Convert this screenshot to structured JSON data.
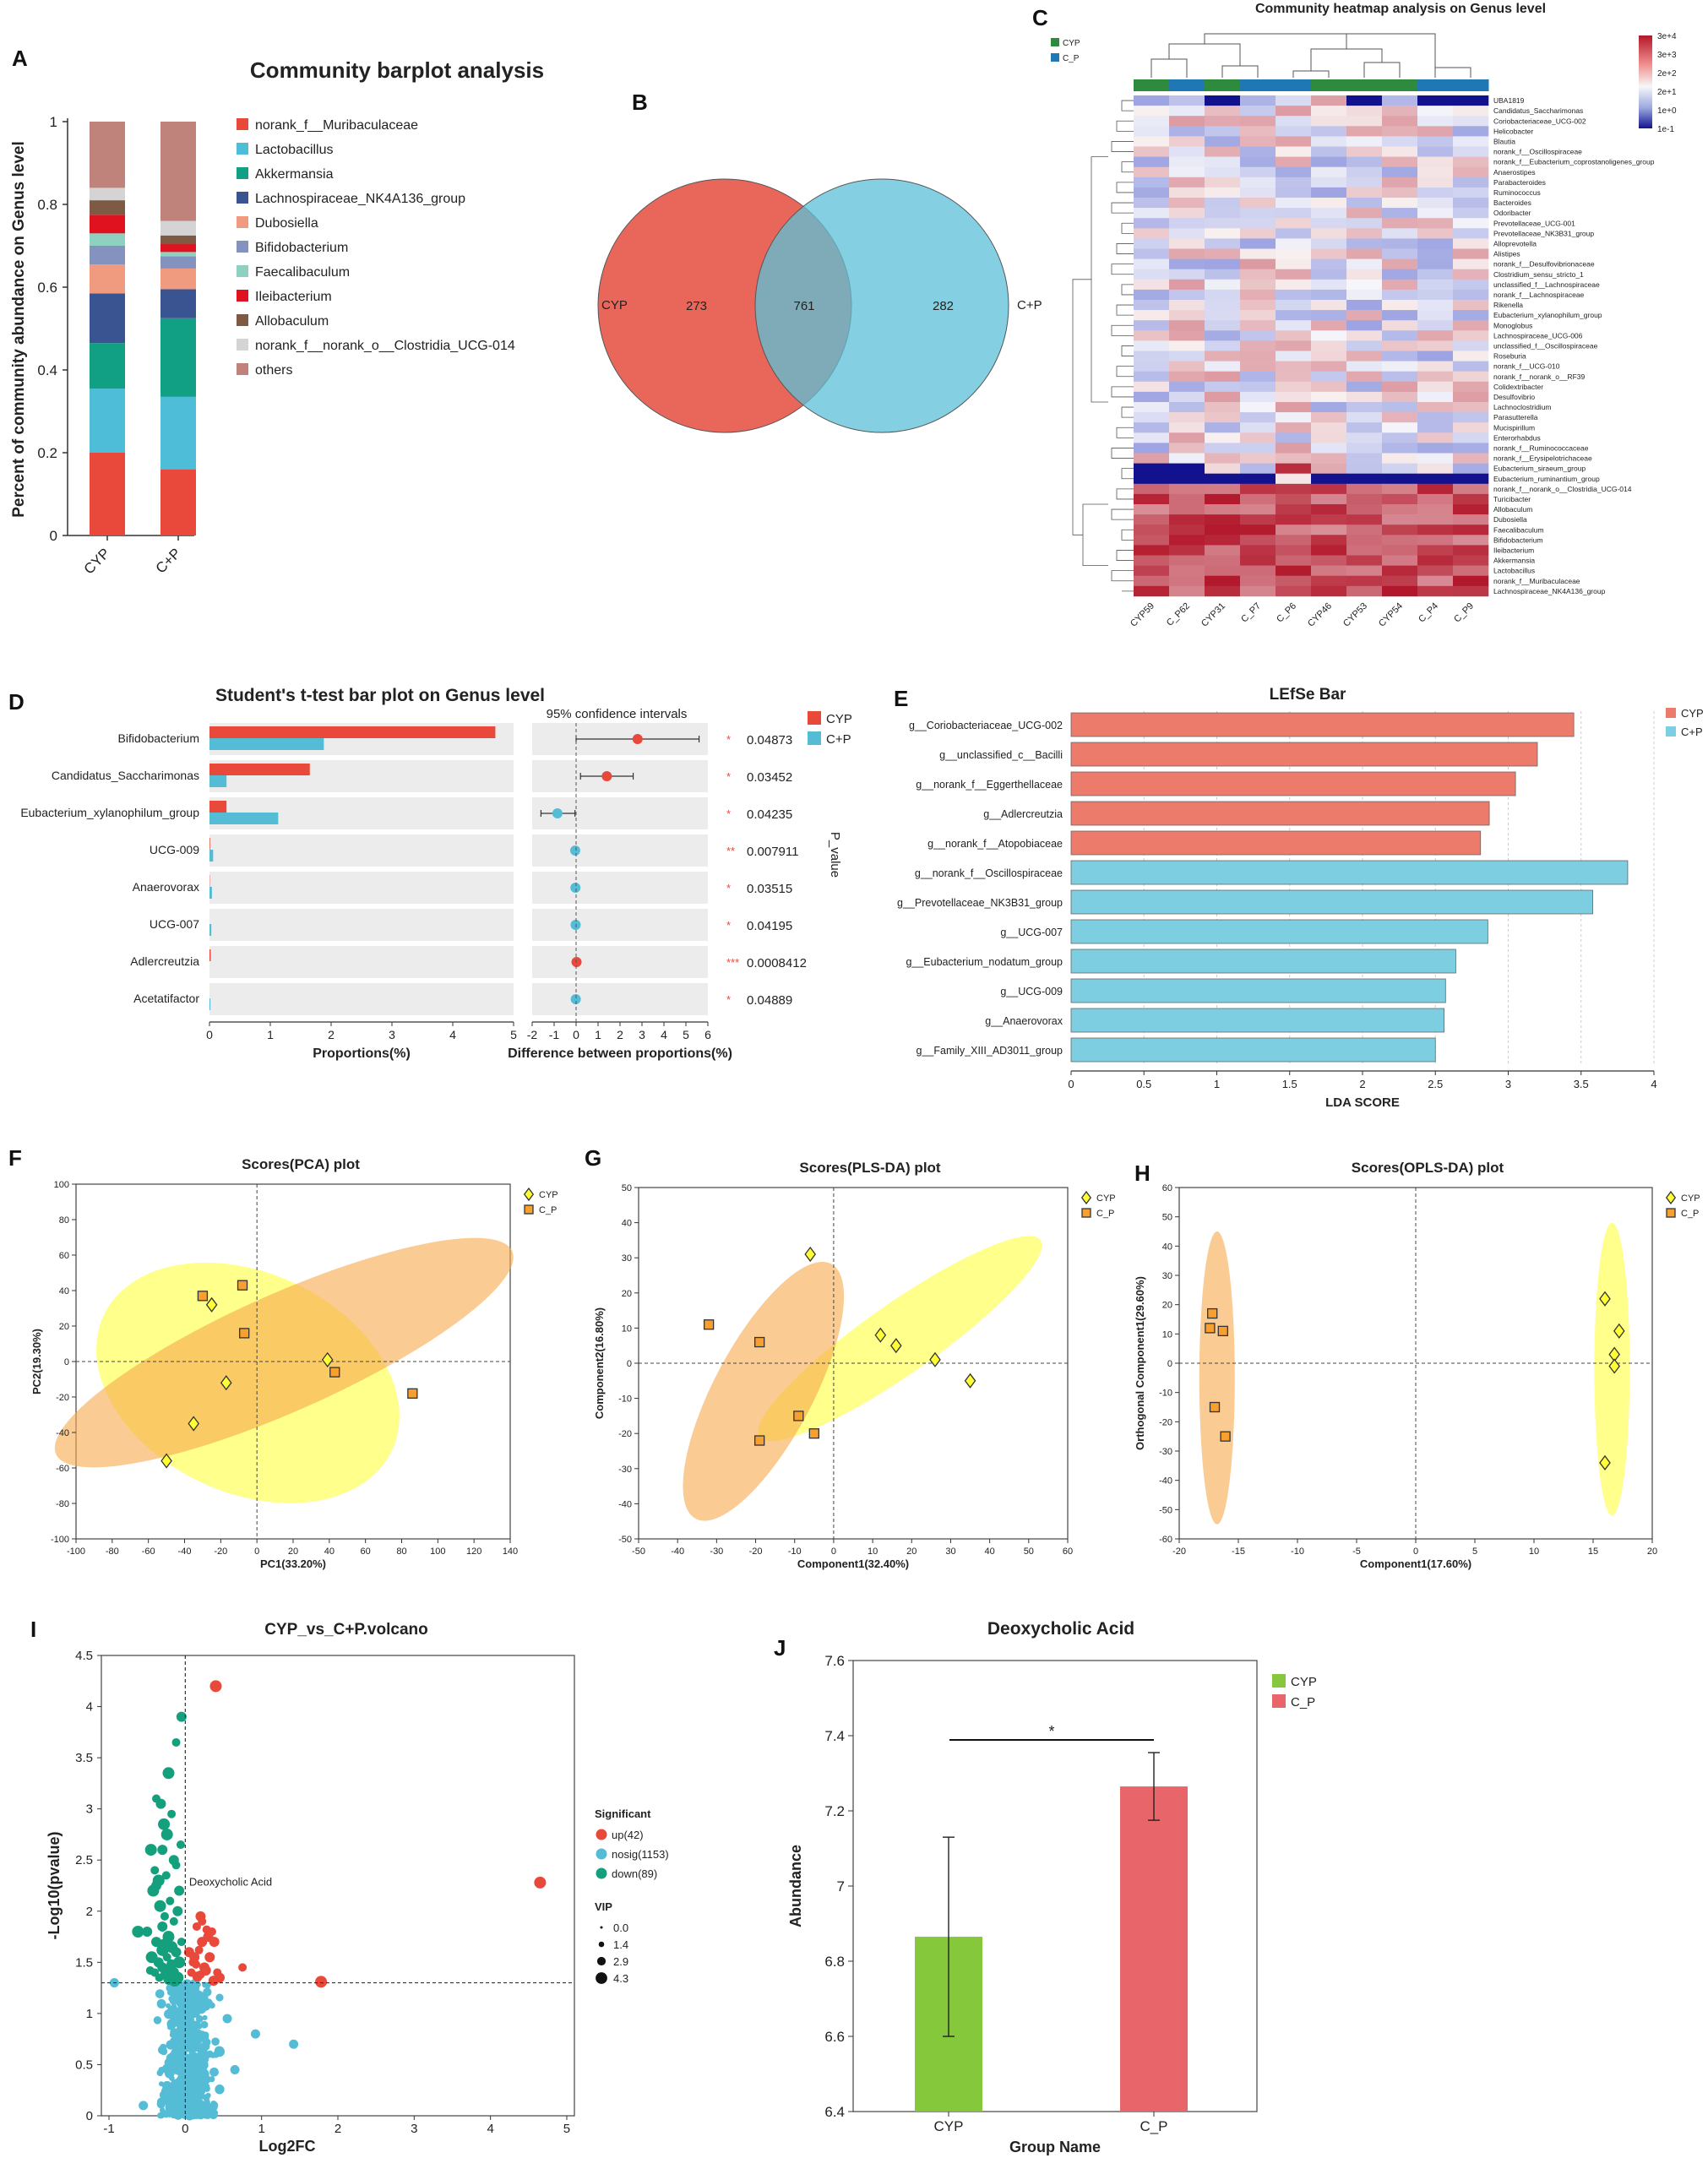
{
  "colors": {
    "cyp_red": "#e8493a",
    "cp_blue": "#55bcd6",
    "pca_yellow": "#ffff66",
    "pca_orange": "#f7a94b",
    "lefse_red": "#ec7b6c",
    "lefse_blue": "#7ccee0",
    "venn_red": "#e9675a",
    "venn_blue": "#5bc0d8",
    "green": "#86c83c",
    "bar_red": "#e8666a",
    "heat_high": "#b2182b",
    "heat_low": "#12128f"
  },
  "panels": {
    "A": "A",
    "B": "B",
    "C": "C",
    "D": "D",
    "E": "E",
    "F": "F",
    "G": "G",
    "H": "H",
    "I": "I",
    "J": "J"
  },
  "chart_data": [
    {
      "id": "A",
      "type": "bar",
      "stacked": true,
      "title": "Community barplot analysis",
      "xlabel": "",
      "ylabel": "Percent of community abundance on Genus level",
      "ylim": [
        0,
        1
      ],
      "yticks": [
        "0",
        "0.2",
        "0.4",
        "0.6",
        "0.8",
        "1"
      ],
      "categories": [
        "CYP",
        "C+P"
      ],
      "legend_position": "right",
      "series": [
        {
          "name": "norank_f__Muribaculaceae",
          "color": "#e8493a",
          "values": [
            0.2,
            0.16
          ]
        },
        {
          "name": "Lactobacillus",
          "color": "#4dbdd8",
          "values": [
            0.155,
            0.175
          ]
        },
        {
          "name": "Akkermansia",
          "color": "#12a084",
          "values": [
            0.11,
            0.19
          ]
        },
        {
          "name": "Lachnospiraceae_NK4A136_group",
          "color": "#3a5391",
          "values": [
            0.12,
            0.07
          ]
        },
        {
          "name": "Dubosiella",
          "color": "#f09a80",
          "values": [
            0.07,
            0.05
          ]
        },
        {
          "name": "Bifidobacterium",
          "color": "#8493bd",
          "values": [
            0.045,
            0.03
          ]
        },
        {
          "name": "Faecalibaculum",
          "color": "#8fd1c0",
          "values": [
            0.03,
            0.01
          ]
        },
        {
          "name": "Ileibacterium",
          "color": "#e0121f",
          "values": [
            0.045,
            0.02
          ]
        },
        {
          "name": "Allobaculum",
          "color": "#7e5a44",
          "values": [
            0.035,
            0.02
          ]
        },
        {
          "name": "norank_f__norank_o__Clostridia_UCG-014",
          "color": "#d4d4d4",
          "values": [
            0.03,
            0.035
          ]
        },
        {
          "name": "others",
          "color": "#c0837c",
          "values": [
            0.16,
            0.24
          ]
        }
      ]
    },
    {
      "id": "B",
      "type": "venn",
      "sets": [
        "CYP",
        "C+P"
      ],
      "values": {
        "only_left": 273,
        "both": 761,
        "only_right": 282
      }
    },
    {
      "id": "C",
      "type": "heatmap",
      "title": "Community heatmap analysis on Genus level",
      "legend_entries": [
        "CYP",
        "C_P"
      ],
      "colorbar_ticks": [
        "3e+4",
        "3e+3",
        "2e+2",
        "2e+1",
        "1e+0",
        "1e-1"
      ],
      "columns": [
        "CYP59",
        "C_P62",
        "CYP31",
        "C_P7",
        "C_P6",
        "CYP46",
        "CYP53",
        "CYP54",
        "C_P4",
        "C_P9"
      ],
      "column_groups": [
        "CYP",
        "C_P",
        "CYP",
        "C_P",
        "C_P",
        "CYP",
        "CYP",
        "CYP",
        "C_P",
        "C_P"
      ],
      "rows": [
        "UBA1819",
        "Candidatus_Saccharimonas",
        "Coriobacteriaceae_UCG-002",
        "Helicobacter",
        "Blautia",
        "norank_f__Oscillospiraceae",
        "norank_f__Eubacterium_coprostanoligenes_group",
        "Anaerostipes",
        "Parabacteroides",
        "Ruminococcus",
        "Bacteroides",
        "Odoribacter",
        "Prevotellaceae_UCG-001",
        "Prevotellaceae_NK3B31_group",
        "Alloprevotella",
        "Alistipes",
        "norank_f__Desulfovibrionaceae",
        "Clostridium_sensu_stricto_1",
        "unclassified_f__Lachnospiraceae",
        "norank_f__Lachnospiraceae",
        "Rikenella",
        "Eubacterium_xylanophilum_group",
        "Monoglobus",
        "Lachnospiraceae_UCG-006",
        "unclassified_f__Oscillospiraceae",
        "Roseburia",
        "norank_f__UCG-010",
        "norank_f__norank_o__RF39",
        "Colidextribacter",
        "Desulfovibrio",
        "Lachnoclostridium",
        "Parasutterella",
        "Mucispirillum",
        "Enterorhabdus",
        "norank_f__Ruminococcaceae",
        "norank_f__Erysipelotrichaceae",
        "Eubacterium_siraeum_group",
        "Eubacterium_ruminantium_group",
        "norank_f__norank_o__Clostridia_UCG-014",
        "Turicibacter",
        "Allobaculum",
        "Dubosiella",
        "Faecalibaculum",
        "Bifidobacterium",
        "Ileibacterium",
        "Akkermansia",
        "Lactobacillus",
        "norank_f__Muribaculaceae",
        "Lachnospiraceae_NK4A136_group"
      ]
    },
    {
      "id": "D",
      "type": "bar",
      "orientation": "horizontal",
      "title": "Student's t-test bar plot on Genus level",
      "xlabel": "Proportions(%)",
      "ci_label": "95% confidence intervals",
      "ci_xlabel": "Difference between proportions(%)",
      "pvalue_label": "P_value",
      "xlim": [
        0,
        5
      ],
      "ci_xlim": [
        -2,
        6
      ],
      "xticks": [
        "0",
        "1",
        "2",
        "3",
        "4",
        "5"
      ],
      "ci_xticks": [
        "-2",
        "-1",
        "0",
        "1",
        "2",
        "3",
        "4",
        "5",
        "6"
      ],
      "categories": [
        "Bifidobacterium",
        "Candidatus_Saccharimonas",
        "Eubacterium_xylanophilum_group",
        "UCG-009",
        "Anaerovorax",
        "UCG-007",
        "Adlercreutzia",
        "Acetatifactor"
      ],
      "series": [
        {
          "name": "CYP",
          "values": [
            4.7,
            1.65,
            0.28,
            0.01,
            0.005,
            0.0,
            0.02,
            0.0
          ]
        },
        {
          "name": "C+P",
          "values": [
            1.88,
            0.28,
            1.13,
            0.06,
            0.04,
            0.03,
            0.0,
            0.015
          ]
        }
      ],
      "difference": [
        2.8,
        1.4,
        -0.85,
        -0.04,
        -0.03,
        -0.02,
        0.02,
        -0.015
      ],
      "ci_low": [
        0.0,
        0.2,
        -1.6,
        -0.07,
        -0.05,
        -0.04,
        0.01,
        -0.03
      ],
      "ci_high": [
        5.6,
        2.6,
        -0.05,
        -0.01,
        0.0,
        0.0,
        0.04,
        0.0
      ],
      "stars": [
        "*",
        "*",
        "*",
        "**",
        "*",
        "*",
        "***",
        "*"
      ],
      "pvalues": [
        "0.04873",
        "0.03452",
        "0.04235",
        "0.007911",
        "0.03515",
        "0.04195",
        "0.0008412",
        "0.04889"
      ]
    },
    {
      "id": "E",
      "type": "bar",
      "orientation": "horizontal",
      "title": "LEfSe Bar",
      "xlabel": "LDA SCORE",
      "xlim": [
        0,
        4
      ],
      "xticks": [
        "0",
        "0.5",
        "1",
        "1.5",
        "2",
        "2.5",
        "3",
        "3.5",
        "4"
      ],
      "legend_entries": [
        "CYP",
        "C+P"
      ],
      "categories": [
        "g__Coriobacteriaceae_UCG-002",
        "g__unclassified_c__Bacilli",
        "g__norank_f__Eggerthellaceae",
        "g__Adlercreutzia",
        "g__norank_f__Atopobiaceae",
        "g__norank_f__Oscillospiraceae",
        "g__Prevotellaceae_NK3B31_group",
        "g__UCG-007",
        "g__Eubacterium_nodatum_group",
        "g__UCG-009",
        "g__Anaerovorax",
        "g__Family_XIII_AD3011_group"
      ],
      "values": [
        3.45,
        3.2,
        3.05,
        2.87,
        2.81,
        3.82,
        3.58,
        2.86,
        2.64,
        2.57,
        2.56,
        2.5
      ],
      "groups": [
        "CYP",
        "CYP",
        "CYP",
        "CYP",
        "CYP",
        "C+P",
        "C+P",
        "C+P",
        "C+P",
        "C+P",
        "C+P",
        "C+P"
      ]
    },
    {
      "id": "F",
      "type": "scatter",
      "title": "Scores(PCA) plot",
      "xlabel": "PC1(33.20%)",
      "ylabel": "PC2(19.30%)",
      "xlim": [
        -100,
        140
      ],
      "ylim": [
        -100,
        100
      ],
      "xticks": [
        "-100",
        "-80",
        "-60",
        "-40",
        "-20",
        "0",
        "20",
        "40",
        "60",
        "80",
        "100",
        "120",
        "140"
      ],
      "yticks": [
        "100",
        "80",
        "60",
        "40",
        "20",
        "0",
        "-20",
        "-40",
        "-60",
        "-80",
        "-100"
      ],
      "series": [
        {
          "name": "CYP",
          "x": [
            -25,
            -17,
            39,
            -35,
            -50
          ],
          "y": [
            32,
            -12,
            1,
            -35,
            -56
          ],
          "ellipse": {
            "cx": -5,
            "cy": -12,
            "rx": 88,
            "ry": 62,
            "angle": 25
          }
        },
        {
          "name": "C_P",
          "x": [
            -30,
            -8,
            -7,
            43,
            86
          ],
          "y": [
            37,
            43,
            16,
            -6,
            -18
          ],
          "ellipse": {
            "cx": 15,
            "cy": 5,
            "rx": 138,
            "ry": 33,
            "angle": -24
          }
        }
      ]
    },
    {
      "id": "G",
      "type": "scatter",
      "title": "Scores(PLS-DA) plot",
      "xlabel": "Component1(32.40%)",
      "ylabel": "Component2(16.80%)",
      "xlim": [
        -50,
        60
      ],
      "ylim": [
        -50,
        50
      ],
      "xticks": [
        "-50",
        "-40",
        "-30",
        "-20",
        "-10",
        "0",
        "10",
        "20",
        "30",
        "40",
        "50",
        "60"
      ],
      "yticks": [
        "50",
        "40",
        "30",
        "20",
        "10",
        "0",
        "-10",
        "-20",
        "-30",
        "-40",
        "-50"
      ],
      "series": [
        {
          "name": "CYP",
          "x": [
            -6,
            12,
            16,
            26,
            35
          ],
          "y": [
            31,
            8,
            5,
            1,
            -5
          ],
          "ellipse": {
            "cx": 17,
            "cy": 7,
            "rx": 44,
            "ry": 10,
            "angle": -35
          }
        },
        {
          "name": "C_P",
          "x": [
            -32,
            -19,
            -19,
            -9,
            -5
          ],
          "y": [
            11,
            6,
            -22,
            -15,
            -20
          ],
          "ellipse": {
            "cx": -18,
            "cy": -8,
            "rx": 37,
            "ry": 14,
            "angle": -62
          }
        }
      ]
    },
    {
      "id": "H",
      "type": "scatter",
      "title": "Scores(OPLS-DA) plot",
      "xlabel": "Component1(17.60%)",
      "ylabel": "Orthogonal Component1(29.60%)",
      "xlim": [
        -20,
        20
      ],
      "ylim": [
        -60,
        60
      ],
      "xticks": [
        "-20",
        "-15",
        "-10",
        "-5",
        "0",
        "5",
        "10",
        "15",
        "20"
      ],
      "yticks": [
        "60",
        "50",
        "40",
        "30",
        "20",
        "10",
        "0",
        "-10",
        "-20",
        "-30",
        "-40",
        "-50",
        "-60"
      ],
      "series": [
        {
          "name": "CYP",
          "x": [
            16.0,
            17.2,
            16.8,
            16.8,
            16.0
          ],
          "y": [
            22,
            11,
            3,
            -1,
            -34
          ],
          "ellipse": {
            "cx": 16.6,
            "cy": -2,
            "rx": 1.5,
            "ry": 50,
            "angle": 0
          }
        },
        {
          "name": "C_P",
          "x": [
            -17.2,
            -17.4,
            -16.3,
            -17.0,
            -16.1
          ],
          "y": [
            17,
            12,
            11,
            -15,
            -25
          ],
          "ellipse": {
            "cx": -16.8,
            "cy": -5,
            "rx": 1.5,
            "ry": 50,
            "angle": 0
          }
        }
      ]
    },
    {
      "id": "I",
      "type": "scatter",
      "title": "CYP_vs_C+P.volcano",
      "xlabel": "Log2FC",
      "ylabel": "-Log10(pvalue)",
      "xlim": [
        -1.1,
        5.1
      ],
      "ylim": [
        0,
        4.5
      ],
      "xticks": [
        "-1",
        "0",
        "1",
        "2",
        "3",
        "4",
        "5"
      ],
      "yticks": [
        "0",
        "0.5",
        "1",
        "1.5",
        "2",
        "2.5",
        "3",
        "3.5",
        "4",
        "4.5"
      ],
      "threshold_y": 1.3,
      "annotation": "Deoxycholic Acid",
      "legend_title": "Significant",
      "vip_title": "VIP",
      "vip_values": [
        "0.0",
        "1.4",
        "2.9",
        "4.3"
      ],
      "series": [
        {
          "name": "up(42)",
          "color": "#e8493a",
          "x": [
            0.4,
            4.65,
            1.78,
            0.2,
            0.15,
            0.22,
            0.28,
            0.3,
            0.35,
            0.38,
            0.18,
            0.12,
            0.1,
            0.25,
            0.42,
            0.45,
            0.75,
            0.05,
            0.08,
            0.32,
            0.2,
            0.27,
            0.14,
            0.37,
            0.22,
            0.16
          ],
          "y": [
            4.2,
            2.28,
            1.31,
            1.95,
            1.85,
            1.7,
            1.82,
            1.75,
            1.8,
            1.7,
            1.62,
            1.55,
            1.5,
            1.45,
            1.4,
            1.35,
            1.45,
            1.6,
            1.4,
            1.55,
            1.38,
            1.42,
            1.48,
            1.32,
            1.9,
            1.36
          ]
        },
        {
          "name": "nosig(1153)",
          "color": "#55bcd6",
          "points": 600,
          "x_range": [
            -0.55,
            0.45
          ],
          "y_range": [
            0,
            1.3
          ],
          "outliers_x": [
            -0.93,
            0.92,
            1.42,
            0.65,
            0.55,
            0.3,
            -0.55
          ],
          "outliers_y": [
            1.3,
            0.8,
            0.7,
            0.45,
            0.95,
            1.1,
            0.1
          ]
        },
        {
          "name": "down(89)",
          "color": "#14a07c",
          "x": [
            -0.12,
            -0.05,
            -0.22,
            -0.38,
            -0.32,
            -0.28,
            -0.18,
            -0.3,
            -0.45,
            -0.4,
            -0.15,
            -0.35,
            -0.25,
            -0.08,
            -0.42,
            -0.2,
            -0.1,
            -0.33,
            -0.27,
            -0.5,
            -0.62,
            -0.15,
            -0.3,
            -0.22,
            -0.05,
            -0.38,
            -0.18,
            -0.28,
            -0.12,
            -0.44,
            -0.24,
            -0.35,
            -0.08,
            -0.2,
            -0.3,
            -0.16,
            -0.4,
            -0.26,
            -0.1,
            -0.34,
            -0.22,
            -0.14,
            -0.46,
            -0.18,
            -0.3,
            -0.06,
            -0.38,
            -0.24,
            -0.12,
            -0.28
          ],
          "y": [
            3.65,
            3.9,
            3.35,
            3.1,
            3.05,
            2.85,
            2.95,
            2.6,
            2.6,
            2.4,
            2.5,
            2.3,
            2.35,
            2.2,
            2.2,
            2.1,
            2.0,
            2.05,
            1.95,
            1.8,
            1.8,
            1.9,
            1.85,
            1.75,
            1.7,
            1.7,
            1.65,
            1.6,
            1.6,
            1.55,
            1.55,
            1.5,
            1.5,
            1.45,
            1.45,
            1.4,
            1.4,
            1.38,
            1.35,
            1.35,
            1.33,
            1.32,
            1.42,
            1.48,
            1.62,
            2.65,
            2.25,
            2.75,
            2.45,
            1.68
          ]
        }
      ]
    },
    {
      "id": "J",
      "type": "bar",
      "title": "Deoxycholic Acid",
      "xlabel": "Group Name",
      "ylabel": "Abundance",
      "ylim": [
        6.4,
        7.6
      ],
      "yticks": [
        "6.4",
        "6.6",
        "6.8",
        "7",
        "7.2",
        "7.4",
        "7.6"
      ],
      "categories": [
        "CYP",
        "C_P"
      ],
      "values": [
        6.865,
        7.265
      ],
      "error": [
        0.265,
        0.09
      ],
      "significance": "*",
      "legend_entries": [
        "CYP",
        "C_P"
      ]
    }
  ]
}
